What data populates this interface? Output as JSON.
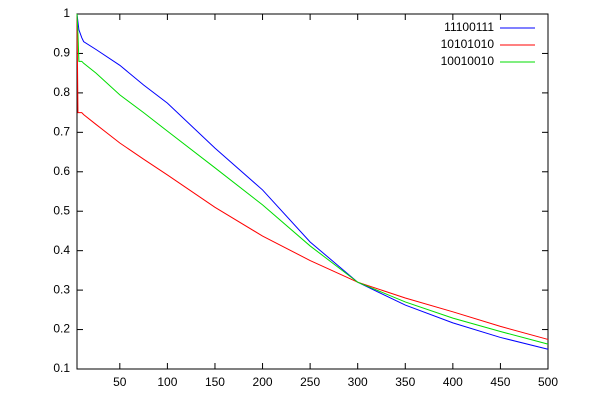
{
  "chart_data": {
    "type": "line",
    "x": [
      5,
      6,
      7,
      10,
      12,
      25,
      50,
      75,
      100,
      150,
      200,
      250,
      300,
      350,
      400,
      450,
      500
    ],
    "series": [
      {
        "name": "11100111",
        "color": "#0000ff",
        "values": [
          1,
          0.98,
          0.96,
          0.94,
          0.93,
          0.91,
          0.87,
          0.82,
          0.774,
          0.66,
          0.554,
          0.422,
          0.32,
          0.262,
          0.217,
          0.18,
          0.15
        ]
      },
      {
        "name": "10101010",
        "color": "#ff0000",
        "values": [
          1,
          0.75,
          0.75,
          0.75,
          0.745,
          0.72,
          0.673,
          0.632,
          0.592,
          0.51,
          0.437,
          0.375,
          0.32,
          0.28,
          0.245,
          0.208,
          0.175
        ]
      },
      {
        "name": "10010010",
        "color": "#00dd00",
        "values": [
          1,
          0.95,
          0.88,
          0.88,
          0.875,
          0.85,
          0.795,
          0.75,
          0.703,
          0.61,
          0.516,
          0.412,
          0.32,
          0.27,
          0.229,
          0.195,
          0.163
        ]
      }
    ],
    "xlim": [
      5,
      500
    ],
    "xticks": [
      50,
      100,
      150,
      200,
      250,
      300,
      350,
      400,
      450,
      500
    ],
    "ylim": [
      0.1,
      1
    ],
    "yticks": [
      0.1,
      0.2,
      0.3,
      0.4,
      0.5,
      0.6,
      0.7,
      0.8,
      0.9,
      1
    ],
    "legend": "top-right"
  }
}
